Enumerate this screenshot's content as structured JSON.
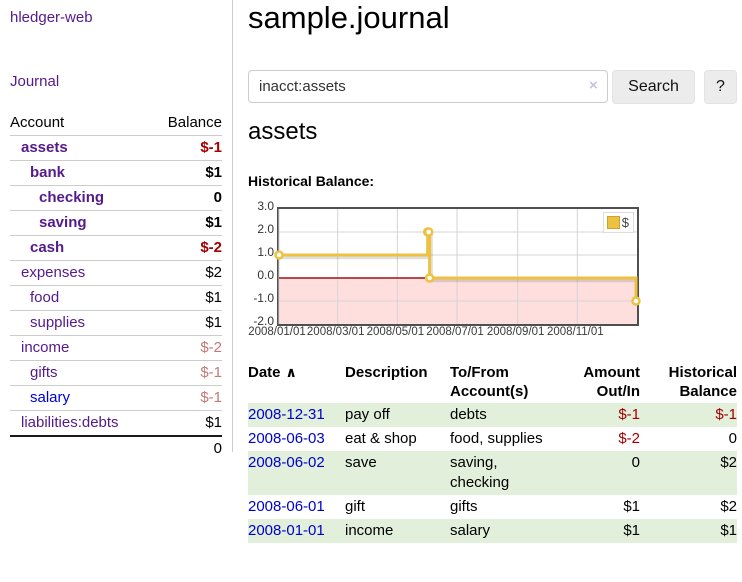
{
  "app": {
    "title": "hledger-web",
    "nav_journal": "Journal"
  },
  "sidebar": {
    "headers": {
      "account": "Account",
      "balance": "Balance"
    },
    "accounts": [
      {
        "name": "assets",
        "level": 1,
        "bold": true,
        "link_color": "purple",
        "balance": "$-1",
        "balance_style": "neg-strong"
      },
      {
        "name": "bank",
        "level": 2,
        "bold": true,
        "link_color": "purple",
        "balance": "$1",
        "balance_style": "pos"
      },
      {
        "name": "checking",
        "level": 3,
        "bold": true,
        "link_color": "purple",
        "balance": "0",
        "balance_style": "pos"
      },
      {
        "name": "saving",
        "level": 3,
        "bold": true,
        "link_color": "purple",
        "balance": "$1",
        "balance_style": "pos"
      },
      {
        "name": "cash",
        "level": 2,
        "bold": true,
        "link_color": "purple",
        "balance": "$-2",
        "balance_style": "neg-strong"
      },
      {
        "name": "expenses",
        "level": 1,
        "bold": false,
        "link_color": "purple",
        "balance": "$2",
        "balance_style": "pos"
      },
      {
        "name": "food",
        "level": 2,
        "bold": false,
        "link_color": "purple",
        "balance": "$1",
        "balance_style": "pos"
      },
      {
        "name": "supplies",
        "level": 2,
        "bold": false,
        "link_color": "purple",
        "balance": "$1",
        "balance_style": "pos"
      },
      {
        "name": "income",
        "level": 1,
        "bold": false,
        "link_color": "purple",
        "balance": "$-2",
        "balance_style": "neg-dim"
      },
      {
        "name": "gifts",
        "level": 2,
        "bold": false,
        "link_color": "purple",
        "balance": "$-1",
        "balance_style": "neg-dim"
      },
      {
        "name": "salary",
        "level": 2,
        "bold": false,
        "link_color": "blue",
        "balance": "$-1",
        "balance_style": "neg-dim"
      },
      {
        "name": "liabilities:debts",
        "level": 1,
        "bold": false,
        "link_color": "purple",
        "balance": "$1",
        "balance_style": "pos"
      }
    ],
    "total": "0"
  },
  "header": {
    "journal_title": "sample.journal"
  },
  "search": {
    "value": "inacct:assets",
    "clear_icon": "×",
    "button_label": "Search",
    "help_label": "?"
  },
  "account_page": {
    "title": "assets",
    "chart_label": "Historical Balance:"
  },
  "chart_data": {
    "type": "line",
    "step": true,
    "title": "Historical Balance",
    "series": [
      {
        "name": "$",
        "color": "#EDC240",
        "points": [
          [
            "2008-01-01",
            1.0
          ],
          [
            "2008-06-01",
            2.0
          ],
          [
            "2008-06-02",
            2.0
          ],
          [
            "2008-06-03",
            0.0
          ],
          [
            "2008-12-31",
            -1.0
          ]
        ]
      }
    ],
    "ylim": [
      -2.0,
      3.0
    ],
    "y_ticks": [
      "3.0",
      "2.0",
      "1.0",
      "0.0",
      "-1.0",
      "-2.0"
    ],
    "x_ticks": [
      "2008/01/01",
      "2008/03/01",
      "2008/05/01",
      "2008/07/01",
      "2008/09/01",
      "2008/11/01"
    ],
    "x_range_days": [
      "2008-01-01",
      "2009-01-01"
    ],
    "legend": {
      "label": "$",
      "position": "top-right"
    },
    "colors": {
      "line": "#EDC240",
      "negative_region": "#ffdede",
      "zero_line": "#a01212",
      "grid": "#d4d4d4",
      "border": "#4f4f4f"
    }
  },
  "register": {
    "headers": {
      "date": "Date",
      "sort_icon": "∧",
      "description": "Description",
      "accounts": "To/From Account(s)",
      "amount": "Amount Out/In",
      "balance": "Historical Balance"
    },
    "rows": [
      {
        "date": "2008-12-31",
        "description": "pay off",
        "accounts": "debts",
        "amount": "$-1",
        "amount_neg": true,
        "balance": "$-1",
        "balance_neg": true,
        "shaded": true
      },
      {
        "date": "2008-06-03",
        "description": "eat & shop",
        "accounts": "food, supplies",
        "amount": "$-2",
        "amount_neg": true,
        "balance": "0",
        "balance_neg": false,
        "shaded": false
      },
      {
        "date": "2008-06-02",
        "description": "save",
        "accounts": "saving, checking",
        "amount": "0",
        "amount_neg": false,
        "balance": "$2",
        "balance_neg": false,
        "shaded": true
      },
      {
        "date": "2008-06-01",
        "description": "gift",
        "accounts": "gifts",
        "amount": "$1",
        "amount_neg": false,
        "balance": "$2",
        "balance_neg": false,
        "shaded": false
      },
      {
        "date": "2008-01-01",
        "description": "income",
        "accounts": "salary",
        "amount": "$1",
        "amount_neg": false,
        "balance": "$1",
        "balance_neg": false,
        "shaded": true
      }
    ]
  },
  "theme_colors": {
    "link_purple": "#551a8b",
    "link_blue": "#0000cc",
    "negative_red": "#a40000",
    "negative_dim_red": "#c47878",
    "row_stripe_green": "#e1efdb"
  }
}
